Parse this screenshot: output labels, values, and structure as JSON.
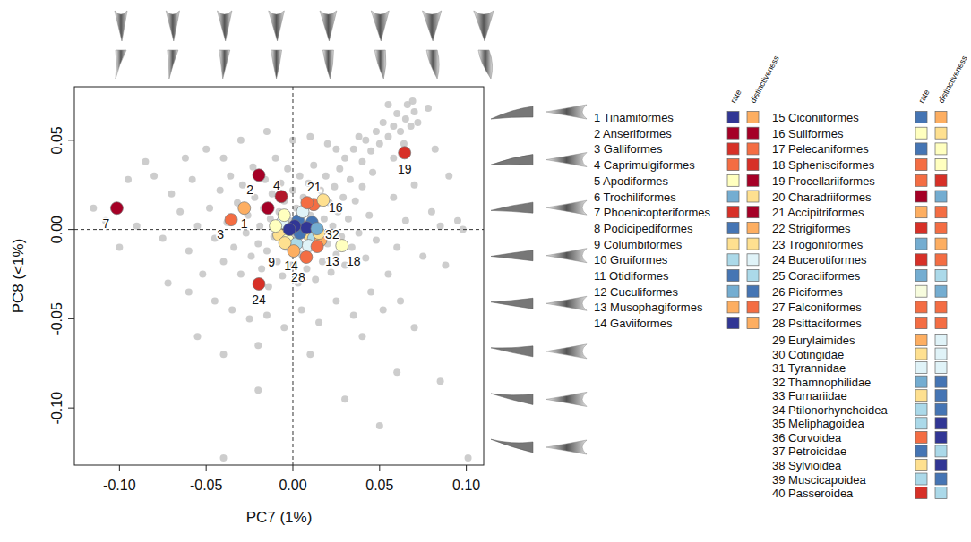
{
  "chart_data": {
    "type": "scatter",
    "xlabel": "PC7 (1%)",
    "ylabel": "PC8 (<1%)",
    "xlim": [
      -0.126,
      0.11
    ],
    "ylim": [
      -0.132,
      0.08
    ],
    "xticks": [
      {
        "value": -0.1,
        "label": "-0.10"
      },
      -0.05,
      {
        "value": 0,
        "label": "0.00"
      },
      0.05,
      {
        "value": 0.1,
        "label": "0.10"
      }
    ],
    "yticks": [
      {
        "value": -0.1,
        "label": "-0.10"
      },
      -0.05,
      {
        "value": 0,
        "label": "0.00"
      },
      0.05
    ],
    "ref_x": [
      0
    ],
    "ref_y": [
      0
    ],
    "color": "#c4c4c4",
    "points": [
      [
        -0.048,
        0.012
      ],
      [
        -0.045,
        -0.005
      ],
      [
        -0.042,
        0.022
      ],
      [
        -0.04,
        -0.018
      ],
      [
        -0.038,
        0.004
      ],
      [
        -0.036,
        0.03
      ],
      [
        -0.034,
        -0.01
      ],
      [
        -0.032,
        0.015
      ],
      [
        -0.03,
        -0.025
      ],
      [
        -0.029,
        0.025
      ],
      [
        -0.027,
        -0.002
      ],
      [
        -0.026,
        0.008
      ],
      [
        -0.024,
        -0.015
      ],
      [
        -0.023,
        0.035
      ],
      [
        -0.022,
        0.018
      ],
      [
        -0.02,
        -0.008
      ],
      [
        -0.019,
        0.002
      ],
      [
        -0.018,
        -0.022
      ],
      [
        -0.017,
        0.012
      ],
      [
        -0.016,
        0.028
      ],
      [
        -0.015,
        -0.012
      ],
      [
        -0.014,
        -0.032
      ],
      [
        -0.013,
        0.006
      ],
      [
        -0.012,
        0.02
      ],
      [
        -0.011,
        -0.004
      ],
      [
        -0.01,
        0.04
      ],
      [
        -0.009,
        -0.018
      ],
      [
        -0.008,
        0.01
      ],
      [
        -0.007,
        0.026
      ],
      [
        -0.006,
        -0.026
      ],
      [
        -0.005,
        0.016
      ],
      [
        -0.004,
        -0.01
      ],
      [
        -0.003,
        0.034
      ],
      [
        -0.002,
        0.005
      ],
      [
        -0.001,
        -0.02
      ],
      [
        0.0,
        0.022
      ],
      [
        0.001,
        -0.003
      ],
      [
        0.002,
        0.012
      ],
      [
        0.003,
        -0.03
      ],
      [
        0.004,
        0.03
      ],
      [
        0.005,
        -0.014
      ],
      [
        0.006,
        0.018
      ],
      [
        0.007,
        0.003
      ],
      [
        0.008,
        -0.022
      ],
      [
        0.009,
        0.026
      ],
      [
        0.01,
        0.008
      ],
      [
        0.011,
        -0.01
      ],
      [
        0.012,
        0.036
      ],
      [
        0.013,
        -0.028
      ],
      [
        0.014,
        0.014
      ],
      [
        0.015,
        -0.001
      ],
      [
        0.016,
        0.022
      ],
      [
        0.017,
        -0.018
      ],
      [
        0.018,
        0.006
      ],
      [
        0.019,
        0.03
      ],
      [
        0.02,
        -0.008
      ],
      [
        0.021,
        0.015
      ],
      [
        0.022,
        -0.024
      ],
      [
        0.023,
        0.002
      ],
      [
        0.024,
        0.024
      ],
      [
        0.025,
        -0.014
      ],
      [
        0.026,
        0.01
      ],
      [
        0.027,
        0.034
      ],
      [
        0.028,
        -0.004
      ],
      [
        0.029,
        0.018
      ],
      [
        0.03,
        -0.02
      ],
      [
        0.032,
        0.006
      ],
      [
        0.033,
        0.028
      ],
      [
        0.034,
        -0.01
      ],
      [
        0.036,
        0.016
      ],
      [
        0.038,
        -0.002
      ],
      [
        0.04,
        0.024
      ],
      [
        0.042,
        -0.016
      ],
      [
        0.044,
        0.008
      ],
      [
        0.046,
        0.032
      ],
      [
        0.048,
        -0.006
      ],
      [
        0.03,
        0.04
      ],
      [
        0.035,
        0.045
      ],
      [
        0.04,
        0.038
      ],
      [
        0.042,
        0.05
      ],
      [
        0.045,
        0.044
      ],
      [
        0.048,
        0.055
      ],
      [
        0.05,
        0.048
      ],
      [
        0.052,
        0.06
      ],
      [
        0.055,
        0.052
      ],
      [
        0.058,
        0.058
      ],
      [
        0.06,
        0.065
      ],
      [
        0.062,
        0.055
      ],
      [
        0.065,
        0.062
      ],
      [
        0.066,
        0.07
      ],
      [
        0.068,
        0.058
      ],
      [
        0.07,
        0.066
      ],
      [
        0.072,
        0.06
      ],
      [
        0.038,
        0.052
      ],
      [
        0.025,
        0.045
      ],
      [
        0.058,
        0.04
      ],
      [
        0.064,
        0.048
      ],
      [
        0.069,
        0.072
      ],
      [
        0.055,
        0.07
      ],
      [
        -0.065,
        0.01
      ],
      [
        -0.06,
        -0.012
      ],
      [
        -0.058,
        0.028
      ],
      [
        -0.055,
        0.002
      ],
      [
        -0.052,
        -0.025
      ],
      [
        -0.07,
        0.02
      ],
      [
        -0.075,
        -0.005
      ],
      [
        -0.062,
        0.04
      ],
      [
        -0.05,
        0.045
      ],
      [
        -0.045,
        -0.04
      ],
      [
        -0.035,
        -0.045
      ],
      [
        -0.025,
        -0.05
      ],
      [
        -0.015,
        -0.048
      ],
      [
        -0.005,
        -0.055
      ],
      [
        0.005,
        -0.045
      ],
      [
        0.015,
        -0.052
      ],
      [
        0.025,
        -0.04
      ],
      [
        0.035,
        -0.048
      ],
      [
        0.045,
        -0.035
      ],
      [
        0.055,
        -0.025
      ],
      [
        0.06,
        -0.01
      ],
      [
        0.065,
        0.005
      ],
      [
        0.058,
        0.018
      ],
      [
        0.07,
        0.025
      ],
      [
        0.075,
        -0.015
      ],
      [
        0.08,
        0.01
      ],
      [
        0.052,
        -0.045
      ],
      [
        0.062,
        -0.04
      ],
      [
        -0.03,
        0.05
      ],
      [
        -0.015,
        0.055
      ],
      [
        0.0,
        0.05
      ],
      [
        0.01,
        0.052
      ],
      [
        0.02,
        0.048
      ],
      [
        -0.04,
        0.04
      ],
      [
        -0.08,
        0.03
      ],
      [
        -0.085,
        0.038
      ],
      [
        -0.09,
        0.002
      ],
      [
        -0.115,
        0.012
      ],
      [
        -0.108,
        0.005
      ],
      [
        -0.095,
        0.028
      ],
      [
        0.085,
        0.002
      ],
      [
        0.095,
        0.005
      ],
      [
        0.098,
        0.0
      ],
      [
        0.088,
        -0.02
      ],
      [
        0.082,
        0.045
      ],
      [
        0.078,
        0.068
      ],
      [
        -0.02,
        -0.065
      ],
      [
        0.01,
        -0.07
      ],
      [
        0.04,
        -0.06
      ],
      [
        0.06,
        -0.08
      ],
      [
        0.085,
        -0.085
      ],
      [
        -0.04,
        -0.07
      ],
      [
        -0.055,
        -0.06
      ],
      [
        -0.02,
        -0.09
      ],
      [
        0.03,
        -0.095
      ],
      [
        0.05,
        -0.11
      ],
      [
        -0.04,
        -0.128
      ],
      [
        0.101,
        -0.128
      ],
      [
        -0.06,
        -0.035
      ],
      [
        -0.072,
        -0.03
      ],
      [
        0.07,
        -0.055
      ],
      [
        -0.1,
        -0.01
      ],
      [
        0.09,
        0.03
      ]
    ],
    "highlights": [
      {
        "x": -0.006,
        "y": 0.004,
        "color": "#e0f3f8",
        "label": null
      },
      {
        "x": 0.003,
        "y": 0.005,
        "color": "#4575b4",
        "label": null
      },
      {
        "x": 0.0057,
        "y": 0.01,
        "color": "#e0f3f8",
        "label": null
      },
      {
        "x": -0.008,
        "y": -0.003,
        "color": "#fee090",
        "label": null
      },
      {
        "x": 0.01,
        "y": -0.004,
        "color": "#fee090",
        "label": null
      },
      {
        "x": -0.003,
        "y": -0.006,
        "color": "#ffffbf",
        "label": null
      },
      {
        "x": 0.012,
        "y": -0.005,
        "color": "#abd9e9",
        "label": null
      },
      {
        "x": -0.01,
        "y": 0.002,
        "color": "#ffffbf",
        "label": null
      },
      {
        "x": 0.016,
        "y": -0.006,
        "color": "#fdae61",
        "label": null
      },
      {
        "x": 0.002,
        "y": -0.008,
        "color": "#abd9e9",
        "label": null
      },
      {
        "x": 0.015,
        "y": -0.002,
        "color": "#fee090",
        "label": null
      },
      {
        "x": 0.009,
        "y": -0.009,
        "color": "#e0f3f8",
        "label": null
      },
      {
        "x": -0.005,
        "y": 0.008,
        "color": "#ffffbf",
        "label": null
      },
      {
        "x": 0.011,
        "y": 0.004,
        "color": "#4575b4",
        "label": null
      },
      {
        "x": 0.004,
        "y": -0.002,
        "color": "#4575b4",
        "label": null
      },
      {
        "x": 0.008,
        "y": 0.001,
        "color": "#313695",
        "label": null
      },
      {
        "x": 0.001,
        "y": 0.002,
        "color": "#313695",
        "label": null
      },
      {
        "x": -0.002,
        "y": 0.0,
        "color": "#313695",
        "label": null
      },
      {
        "x": -0.0144,
        "y": 0.012,
        "color": "#a50026",
        "label": null
      },
      {
        "x": 0.012,
        "y": 0.014,
        "color": "#f46d43",
        "label": null
      },
      {
        "x": -0.1015,
        "y": 0.012,
        "color": "#a50026",
        "label": "7"
      },
      {
        "x": -0.0356,
        "y": 0.0055,
        "color": "#f46d43",
        "label": "3"
      },
      {
        "x": -0.028,
        "y": 0.012,
        "color": "#fdae61",
        "label": "1"
      },
      {
        "x": -0.0196,
        "y": 0.0305,
        "color": "#a50026",
        "label": "2"
      },
      {
        "x": -0.0067,
        "y": 0.0185,
        "color": "#b2182b",
        "label": "4"
      },
      {
        "x": 0.0082,
        "y": 0.015,
        "color": "#f46d43",
        "label": "21"
      },
      {
        "x": 0.0175,
        "y": 0.0165,
        "color": "#fee090",
        "label": "16"
      },
      {
        "x": 0.0644,
        "y": 0.043,
        "color": "#d73027",
        "label": "19"
      },
      {
        "x": -0.0196,
        "y": -0.0305,
        "color": "#d73027",
        "label": "24"
      },
      {
        "x": -0.0046,
        "y": -0.0075,
        "color": "#fee090",
        "label": "9"
      },
      {
        "x": 0.0005,
        "y": -0.012,
        "color": "#fdae61",
        "label": "14"
      },
      {
        "x": 0.0077,
        "y": -0.0155,
        "color": "#f46d43",
        "label": "28"
      },
      {
        "x": 0.014,
        "y": -0.0095,
        "color": "#f46d43",
        "label": "13"
      },
      {
        "x": 0.0283,
        "y": -0.009,
        "color": "#ffffbf",
        "label": "18"
      },
      {
        "x": 0.0139,
        "y": 0.0005,
        "color": "#74add1",
        "label": "32"
      }
    ],
    "legend": "right",
    "legend_columns": [
      "rate",
      "distinctiveness"
    ],
    "legend_items": [
      {
        "label": "1 Tinamiformes",
        "colors": [
          "#313695",
          "#fdae61"
        ]
      },
      {
        "label": "2 Anseriformes",
        "colors": [
          "#a50026",
          "#a50026"
        ]
      },
      {
        "label": "3 Galliformes",
        "colors": [
          "#d73027",
          "#f46d43"
        ]
      },
      {
        "label": "4 Caprimulgiformes",
        "colors": [
          "#f46d43",
          "#d73027"
        ]
      },
      {
        "label": "5 Apodiformes",
        "colors": [
          "#ffffbf",
          "#a50026"
        ]
      },
      {
        "label": "6 Trochiliformes",
        "colors": [
          "#74add1",
          "#fee090"
        ]
      },
      {
        "label": "7 Phoenicopteriformes",
        "colors": [
          "#d73027",
          "#a50026"
        ]
      },
      {
        "label": "8 Podicipediformes",
        "colors": [
          "#4575b4",
          "#fdae61"
        ]
      },
      {
        "label": "9 Columbiformes",
        "colors": [
          "#fee090",
          "#fee090"
        ]
      },
      {
        "label": "10 Gruiformes",
        "colors": [
          "#abd9e9",
          "#e0f3f8"
        ]
      },
      {
        "label": "11 Otidiformes",
        "colors": [
          "#4575b4",
          "#abd9e9"
        ]
      },
      {
        "label": "12 Cuculiformes",
        "colors": [
          "#74add1",
          "#4575b4"
        ]
      },
      {
        "label": "13 Musophagiformes",
        "colors": [
          "#fdae61",
          "#f46d43"
        ]
      },
      {
        "label": "14 Gaviiformes",
        "colors": [
          "#313695",
          "#fdae61"
        ]
      },
      {
        "label": "15 Ciconiiformes",
        "colors": [
          "#4575b4",
          "#fdae61"
        ]
      },
      {
        "label": "16 Suliformes",
        "colors": [
          "#ffffbf",
          "#fee090"
        ]
      },
      {
        "label": "17 Pelecaniformes",
        "colors": [
          "#4575b4",
          "#ffffbf"
        ]
      },
      {
        "label": "18 Sphenisciformes",
        "colors": [
          "#f46d43",
          "#ffffbf"
        ]
      },
      {
        "label": "19 Procellariiformes",
        "colors": [
          "#f46d43",
          "#d73027"
        ]
      },
      {
        "label": "20 Charadriiformes",
        "colors": [
          "#a50026",
          "#74add1"
        ]
      },
      {
        "label": "21 Accipitriformes",
        "colors": [
          "#fdae61",
          "#f46d43"
        ]
      },
      {
        "label": "22 Strigiformes",
        "colors": [
          "#d73027",
          "#f46d43"
        ]
      },
      {
        "label": "23 Trogoniformes",
        "colors": [
          "#74add1",
          "#fdae61"
        ]
      },
      {
        "label": "24 Bucerotiformes",
        "colors": [
          "#d73027",
          "#f46d43"
        ]
      },
      {
        "label": "25 Coraciiformes",
        "colors": [
          "#74add1",
          "#abd9e9"
        ]
      },
      {
        "label": "26 Piciformes",
        "colors": [
          "#f7fcde",
          "#74add1"
        ]
      },
      {
        "label": "27 Falconiformes",
        "colors": [
          "#f46d43",
          "#f46d43"
        ]
      },
      {
        "label": "28 Psittaciformes",
        "colors": [
          "#f46d43",
          "#f46d43"
        ]
      },
      {
        "label": "29 Eurylaimides",
        "colors": [
          "#fdae61",
          "#e0f3f8"
        ]
      },
      {
        "label": "30 Cotingidae",
        "colors": [
          "#fee090",
          "#e0f3f8"
        ]
      },
      {
        "label": "31 Tyrannidae",
        "colors": [
          "#e0f3f8",
          "#e0f3f8"
        ]
      },
      {
        "label": "32 Thamnophilidae",
        "colors": [
          "#74add1",
          "#4575b4"
        ]
      },
      {
        "label": "33 Furnariidae",
        "colors": [
          "#fee090",
          "#4575b4"
        ]
      },
      {
        "label": "34 Ptilonorhynchoidea",
        "colors": [
          "#abd9e9",
          "#4575b4"
        ]
      },
      {
        "label": "35 Meliphagoidea",
        "colors": [
          "#abd9e9",
          "#313695"
        ]
      },
      {
        "label": "36 Corvoidea",
        "colors": [
          "#f46d43",
          "#313695"
        ]
      },
      {
        "label": "37 Petroicidae",
        "colors": [
          "#4575b4",
          "#abd9e9"
        ]
      },
      {
        "label": "38 Sylvioidea",
        "colors": [
          "#fee090",
          "#313695"
        ]
      },
      {
        "label": "39 Muscicapoidea",
        "colors": [
          "#abd9e9",
          "#4575b4"
        ]
      },
      {
        "label": "40 Passeroidea",
        "colors": [
          "#d73027",
          "#abd9e9"
        ]
      }
    ]
  }
}
